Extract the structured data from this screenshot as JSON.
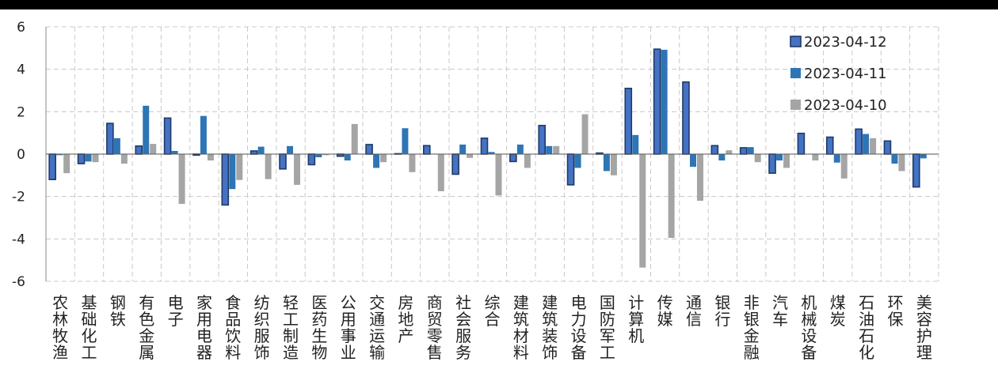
{
  "chart_data": {
    "type": "bar",
    "title": "",
    "xlabel": "",
    "ylabel": "",
    "ylim": [
      -6,
      6
    ],
    "yticks": [
      -6,
      -4,
      -2,
      0,
      2,
      4,
      6
    ],
    "grid": true,
    "legend_position": "top-right",
    "categories": [
      "农林牧渔",
      "基础化工",
      "钢铁",
      "有色金属",
      "电子",
      "家用电器",
      "食品饮料",
      "纺织服饰",
      "轻工制造",
      "医药生物",
      "公用事业",
      "交通运输",
      "房地产",
      "商贸零售",
      "社会服务",
      "综合",
      "建筑材料",
      "建筑装饰",
      "电力设备",
      "国防军工",
      "计算机",
      "传媒",
      "通信",
      "银行",
      "非银金融",
      "汽车",
      "机械设备",
      "煤炭",
      "石油石化",
      "环保",
      "美容护理"
    ],
    "series": [
      {
        "name": "2023-04-12",
        "color": "#4472C4",
        "border": "#1F3A66",
        "values": [
          -1.2,
          -0.45,
          1.45,
          0.38,
          1.7,
          -0.05,
          -2.4,
          0.15,
          -0.7,
          -0.5,
          -0.1,
          0.45,
          0.02,
          0.4,
          -0.95,
          0.75,
          -0.35,
          1.35,
          -1.45,
          0.05,
          3.1,
          4.95,
          3.4,
          0.4,
          0.3,
          -0.9,
          0.98,
          0.8,
          1.18,
          0.62,
          -1.55
        ]
      },
      {
        "name": "2023-04-11",
        "color": "#2E75B6",
        "values": [
          -0.05,
          -0.35,
          0.75,
          2.28,
          0.15,
          1.8,
          -1.65,
          0.35,
          0.38,
          -0.15,
          -0.3,
          -0.65,
          1.22,
          0.02,
          0.45,
          0.1,
          0.45,
          0.38,
          -0.65,
          -0.8,
          0.9,
          4.92,
          -0.6,
          -0.3,
          0.33,
          -0.3,
          0.0,
          -0.4,
          0.95,
          -0.45,
          -0.2
        ]
      },
      {
        "name": "2023-04-10",
        "color": "#A5A5A5",
        "values": [
          -0.9,
          -0.38,
          -0.45,
          0.48,
          -2.35,
          -0.3,
          -1.22,
          -1.18,
          -1.45,
          -0.05,
          1.42,
          -0.38,
          -0.85,
          -1.75,
          -0.18,
          -1.95,
          -0.65,
          0.38,
          1.88,
          -1.0,
          -5.35,
          -3.95,
          -2.2,
          0.18,
          -0.38,
          -0.65,
          -0.3,
          -1.15,
          0.75,
          -0.8,
          -0.02
        ]
      }
    ]
  }
}
